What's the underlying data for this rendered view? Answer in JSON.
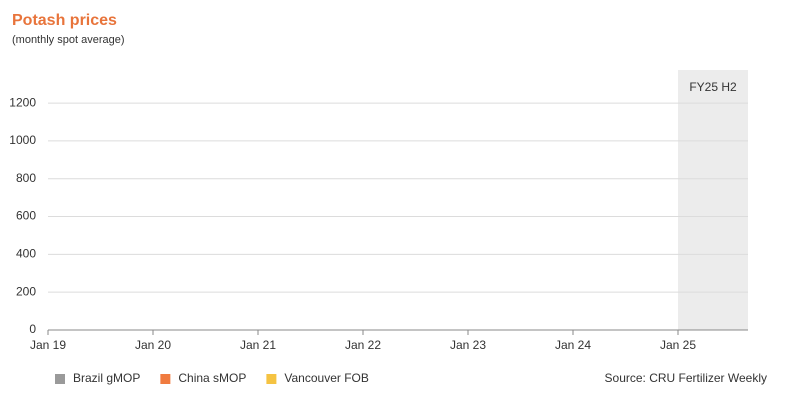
{
  "chart_data": {
    "type": "line",
    "title": "Potash prices",
    "subtitle": "(monthly spot average)",
    "source": "Source: CRU Fertilizer Weekly",
    "series": [
      {
        "name": "Brazil gMOP",
        "color": "#9a9a9a",
        "values": []
      },
      {
        "name": "China sMOP",
        "color": "#f07b3f",
        "values": []
      },
      {
        "name": "Vancouver FOB",
        "color": "#f5c342",
        "values": []
      }
    ],
    "xlim": [
      0,
      80
    ],
    "xticks": [
      {
        "value": 0,
        "label": "Jan 19"
      },
      {
        "value": 12,
        "label": "Jan 20"
      },
      {
        "value": 24,
        "label": "Jan 21"
      },
      {
        "value": 36,
        "label": "Jan 22"
      },
      {
        "value": 48,
        "label": "Jan 23"
      },
      {
        "value": 60,
        "label": "Jan 24"
      },
      {
        "value": 72,
        "label": "Jan 25"
      }
    ],
    "ylim": [
      0,
      1375
    ],
    "yticks": [
      0,
      200,
      400,
      600,
      800,
      1000,
      1200
    ],
    "grid": true,
    "highlight": {
      "label": "FY25 H2",
      "from": 72,
      "to": 80,
      "color": "#ececec"
    }
  }
}
